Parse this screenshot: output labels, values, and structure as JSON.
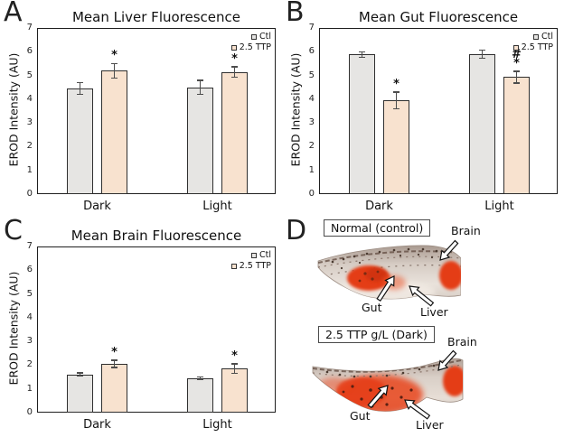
{
  "figure": {
    "panels": {
      "A": {
        "label": "A"
      },
      "B": {
        "label": "B"
      },
      "C": {
        "label": "C"
      },
      "D": {
        "label": "D"
      }
    }
  },
  "colors": {
    "ctl_fill": "#e6e5e3",
    "ttp_fill": "#f8e2cf",
    "bar_border": "#2f2f2f",
    "error_bar": "#4d4d4d",
    "plot_border": "#1f1f1f",
    "fluorescence_red": "#e43d16"
  },
  "chart_data": [
    {
      "type": "bar",
      "panel": "A",
      "title": "Mean Liver Fluorescence",
      "ylabel": "EROD Intensity (AU)",
      "ylim": [
        0,
        7
      ],
      "yticks": [
        0,
        1,
        2,
        3,
        4,
        5,
        6,
        7
      ],
      "categories": [
        "Dark",
        "Light"
      ],
      "legend_position": "top-right",
      "series": [
        {
          "name": "Ctl",
          "color": "#e6e5e3",
          "values": [
            4.45,
            4.5
          ],
          "errors": [
            0.25,
            0.3
          ],
          "sig": [
            "",
            ""
          ]
        },
        {
          "name": "2.5 TTP",
          "color": "#f8e2cf",
          "values": [
            5.2,
            5.15
          ],
          "errors": [
            0.3,
            0.22
          ],
          "sig": [
            "*",
            "*"
          ]
        }
      ]
    },
    {
      "type": "bar",
      "panel": "B",
      "title": "Mean Gut Fluorescence",
      "ylabel": "EROD Intensity (AU)",
      "ylim": [
        0,
        7
      ],
      "yticks": [
        0,
        1,
        2,
        3,
        4,
        5,
        6,
        7
      ],
      "categories": [
        "Dark",
        "Light"
      ],
      "legend_position": "top-right",
      "series": [
        {
          "name": "Ctl",
          "color": "#e6e5e3",
          "values": [
            5.88,
            5.9
          ],
          "errors": [
            0.12,
            0.17
          ],
          "sig": [
            "",
            ""
          ]
        },
        {
          "name": "2.5 TTP",
          "color": "#f8e2cf",
          "values": [
            3.95,
            4.93
          ],
          "errors": [
            0.35,
            0.25
          ],
          "sig": [
            "*",
            "#*"
          ]
        }
      ]
    },
    {
      "type": "bar",
      "panel": "C",
      "title": "Mean Brain Fluorescence",
      "ylabel": "EROD Intensity (AU)",
      "ylim": [
        0,
        7
      ],
      "yticks": [
        0,
        1,
        2,
        3,
        4,
        5,
        6,
        7
      ],
      "categories": [
        "Dark",
        "Light"
      ],
      "legend_position": "top-right",
      "series": [
        {
          "name": "Ctl",
          "color": "#e6e5e3",
          "values": [
            1.6,
            1.45
          ],
          "errors": [
            0.07,
            0.05
          ],
          "sig": [
            "",
            ""
          ]
        },
        {
          "name": "2.5 TTP",
          "color": "#f8e2cf",
          "values": [
            2.05,
            1.85
          ],
          "errors": [
            0.15,
            0.2
          ],
          "sig": [
            "*",
            "*"
          ]
        }
      ]
    }
  ],
  "panel_d": {
    "images": [
      {
        "caption": "Normal (control)",
        "annotations": {
          "brain": "Brain",
          "gut": "Gut",
          "liver": "Liver"
        }
      },
      {
        "caption": "2.5 TTP g/L (Dark)",
        "annotations": {
          "brain": "Brain",
          "gut": "Gut",
          "liver": "Liver"
        }
      }
    ]
  }
}
